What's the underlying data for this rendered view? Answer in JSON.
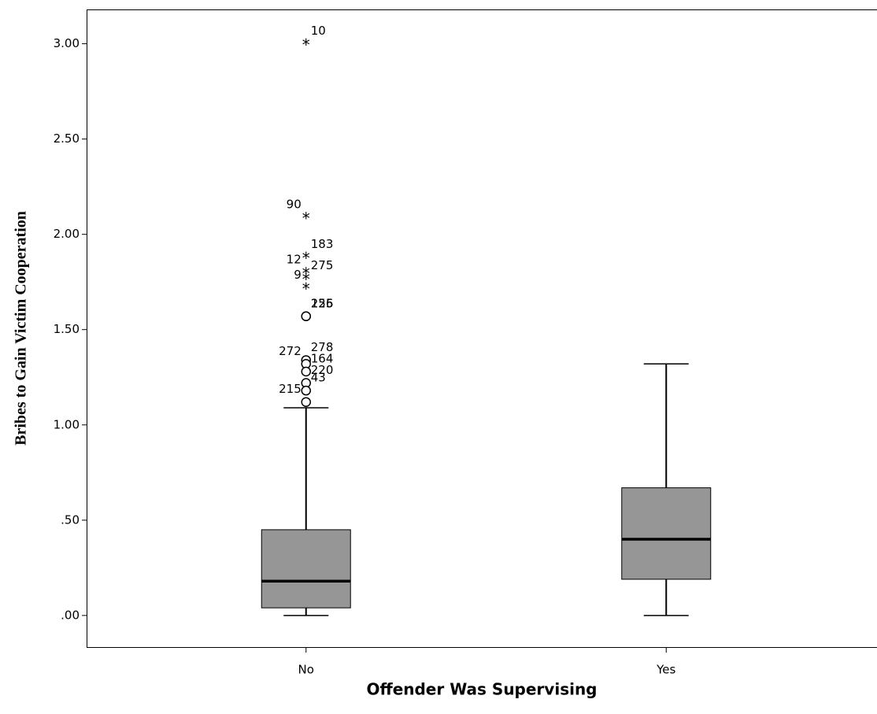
{
  "chart_data": {
    "type": "box",
    "x_label": "Offender Was Supervising",
    "y_label": "Bribes to Gain Victim Cooperation",
    "categories": [
      "No",
      "Yes"
    ],
    "ylim": [
      -0.17,
      3.18
    ],
    "yticks": [
      {
        "value": 0,
        "label": ".00"
      },
      {
        "value": 0.5,
        "label": ".50"
      },
      {
        "value": 1,
        "label": "1.00"
      },
      {
        "value": 1.5,
        "label": "1.50"
      },
      {
        "value": 2,
        "label": "2.00"
      },
      {
        "value": 2.5,
        "label": "2.50"
      },
      {
        "value": 3,
        "label": "3.00"
      }
    ],
    "color": "#969696",
    "boxes": [
      {
        "min": 0,
        "q1": 0.04,
        "median": 0.18,
        "q3": 0.45,
        "max": 1.09,
        "outliers": [
          {
            "value": 3.0,
            "case": "10",
            "kind": "extreme"
          },
          {
            "value": 2.09,
            "case": "90",
            "kind": "extreme"
          },
          {
            "value": 1.88,
            "case": "183",
            "kind": "extreme"
          },
          {
            "value": 1.8,
            "case": "12",
            "kind": "extreme"
          },
          {
            "value": 1.77,
            "case": "275",
            "kind": "extreme"
          },
          {
            "value": 1.72,
            "case": "9",
            "kind": "extreme"
          },
          {
            "value": 1.57,
            "case": "255",
            "kind": "outlier"
          },
          {
            "value": 1.57,
            "case": "126",
            "kind": "outlier"
          },
          {
            "value": 1.34,
            "case": "278",
            "kind": "outlier"
          },
          {
            "value": 1.32,
            "case": "272",
            "kind": "outlier"
          },
          {
            "value": 1.28,
            "case": "164",
            "kind": "outlier"
          },
          {
            "value": 1.22,
            "case": "220",
            "kind": "outlier"
          },
          {
            "value": 1.18,
            "case": "43",
            "kind": "outlier"
          },
          {
            "value": 1.12,
            "case": "215",
            "kind": "outlier"
          }
        ]
      },
      {
        "min": 0,
        "q1": 0.19,
        "median": 0.4,
        "q3": 0.67,
        "max": 1.32,
        "outliers": []
      }
    ]
  }
}
